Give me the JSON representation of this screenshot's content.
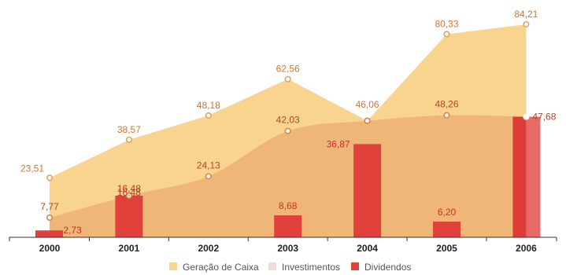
{
  "chart_data": {
    "type": "area",
    "categories": [
      "2000",
      "2001",
      "2002",
      "2003",
      "2004",
      "2005",
      "2006"
    ],
    "series": [
      {
        "name": "Geração de Caixa",
        "kind": "area",
        "color": "#f8d48e",
        "values": [
          23.51,
          38.57,
          48.18,
          62.56,
          46.06,
          80.33,
          84.21
        ],
        "labels": [
          "23,51",
          "38,57",
          "48,18",
          "62,56",
          "46,06",
          "80,33",
          "84,21"
        ]
      },
      {
        "name": "Investimentos",
        "kind": "area",
        "color": "#f0b678",
        "values": [
          7.77,
          16.48,
          24.13,
          42.03,
          46.06,
          48.26,
          47.68
        ],
        "labels": [
          "7,77",
          "16,48",
          "24,13",
          "42,03",
          "",
          "48,26",
          "47,68"
        ]
      },
      {
        "name": "Dividendos",
        "kind": "bar",
        "color": "#e0413a",
        "values": [
          2.73,
          16.48,
          null,
          8.68,
          36.87,
          6.2,
          47.68
        ],
        "labels": [
          "2,73",
          "",
          "",
          "8,68",
          "36,87",
          "6,20",
          ""
        ]
      }
    ],
    "legend": {
      "position": "bottom",
      "colors": [
        "#f8d48e",
        "#f3dada",
        "#e0413a"
      ]
    },
    "ylim": [
      0,
      90
    ],
    "grid": false
  }
}
